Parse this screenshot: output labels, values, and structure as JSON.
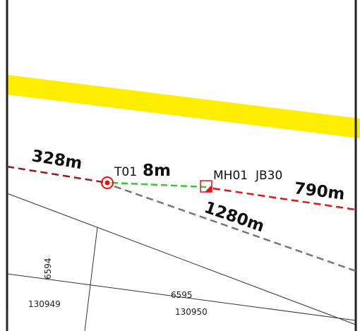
{
  "map": {
    "road_color": "#ffee00",
    "distance_labels": {
      "left": "328m",
      "short": "8m",
      "right": "790m",
      "diag": "1280m"
    },
    "point_labels": {
      "pole": "T01",
      "manhole": "MH01",
      "joint_box": "JB30"
    },
    "parcel_labels": {
      "p6594": "6594",
      "p130949": "130949",
      "p6595": "6595",
      "p130950": "130950"
    },
    "route_colors": {
      "left": "#9b1b1b",
      "short": "#33cc33",
      "right": "#ee1111",
      "diag": "#777777"
    }
  }
}
